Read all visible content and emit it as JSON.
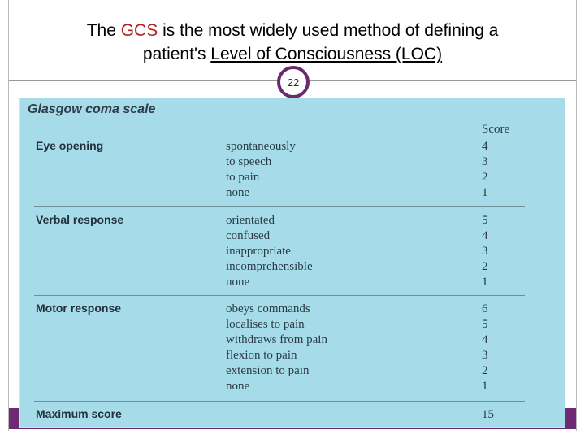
{
  "slide": {
    "title_prefix": "The ",
    "title_accent": "GCS",
    "title_mid": " is the most widely used method of defining a",
    "title_line2_prefix": "patient's ",
    "title_line2_underline": "Level of Consciousness (LOC)",
    "page_number": "22"
  },
  "table": {
    "title": "Glasgow coma scale",
    "score_header": "Score",
    "sections": [
      {
        "name": "Eye opening",
        "items": [
          {
            "label": "spontaneously",
            "score": "4"
          },
          {
            "label": "to speech",
            "score": "3"
          },
          {
            "label": "to pain",
            "score": "2"
          },
          {
            "label": "none",
            "score": "1"
          }
        ]
      },
      {
        "name": "Verbal response",
        "items": [
          {
            "label": "orientated",
            "score": "5"
          },
          {
            "label": "confused",
            "score": "4"
          },
          {
            "label": "inappropriate",
            "score": "3"
          },
          {
            "label": "incomprehensible",
            "score": "2"
          },
          {
            "label": "none",
            "score": "1"
          }
        ]
      },
      {
        "name": "Motor response",
        "items": [
          {
            "label": "obeys commands",
            "score": "6"
          },
          {
            "label": "localises to pain",
            "score": "5"
          },
          {
            "label": "withdraws from pain",
            "score": "4"
          },
          {
            "label": "flexion to pain",
            "score": "3"
          },
          {
            "label": "extension to pain",
            "score": "2"
          },
          {
            "label": "none",
            "score": "1"
          }
        ]
      }
    ],
    "max_label": "Maximum score",
    "max_score": "15"
  }
}
